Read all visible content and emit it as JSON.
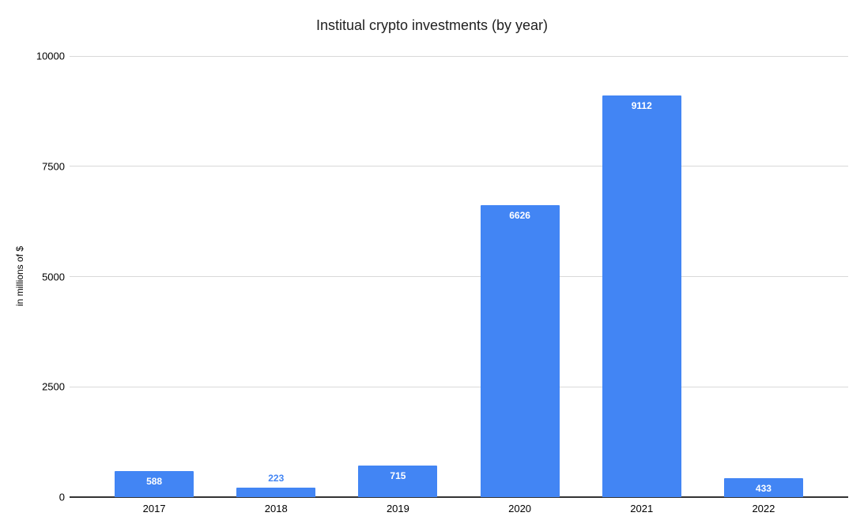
{
  "chart": {
    "title": "Institual crypto investments (by year)",
    "y_axis": {
      "title": "in millions of $",
      "ticks": [
        0,
        2500,
        5000,
        7500,
        10000
      ],
      "max": 10000
    },
    "x_axis": {
      "categories": [
        "2017",
        "2018",
        "2019",
        "2020",
        "2021",
        "2022"
      ]
    },
    "values": [
      588,
      223,
      715,
      6626,
      9112,
      433
    ],
    "colors": {
      "bar": "#4285f4",
      "label_inside": "#ffffff",
      "label_outside": "#4285f4",
      "gridline": "#d9d9d9",
      "baseline": "#333333",
      "text": "#000000",
      "title_text": "#212121"
    }
  },
  "chart_data": {
    "type": "bar",
    "title": "Institual crypto investments (by year)",
    "categories": [
      "2017",
      "2018",
      "2019",
      "2020",
      "2021",
      "2022"
    ],
    "values": [
      588,
      223,
      715,
      6626,
      9112,
      433
    ],
    "xlabel": "",
    "ylabel": "in millions of $",
    "ylim": [
      0,
      10000
    ],
    "yticks": [
      0,
      2500,
      5000,
      7500,
      10000
    ],
    "grid": true,
    "legend": false,
    "bar_color": "#4285f4",
    "data_labels": true
  }
}
